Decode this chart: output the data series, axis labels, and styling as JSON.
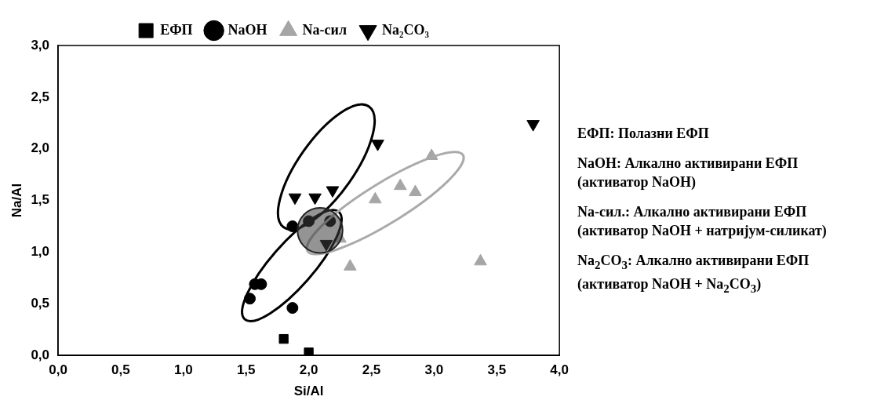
{
  "chart_data": {
    "type": "scatter",
    "xlabel": "Si/Al",
    "ylabel": "Na/Al",
    "legend": "top",
    "grid": false,
    "xlim": [
      0,
      4
    ],
    "ylim": [
      0,
      3
    ],
    "xticks": [
      {
        "value": 0,
        "label": "0,0"
      },
      {
        "value": 0.5,
        "label": "0,5"
      },
      {
        "value": 1,
        "label": "1,0"
      },
      {
        "value": 1.5,
        "label": "1,5"
      },
      {
        "value": 2,
        "label": "2,0"
      },
      {
        "value": 2.5,
        "label": "2,5"
      },
      {
        "value": 3,
        "label": "3,0"
      },
      {
        "value": 3.5,
        "label": "3,5"
      },
      {
        "value": 4,
        "label": "4,0"
      }
    ],
    "yticks": [
      {
        "value": 0,
        "label": "0,0"
      },
      {
        "value": 0.5,
        "label": "0,5"
      },
      {
        "value": 1,
        "label": "1,0"
      },
      {
        "value": 1.5,
        "label": "1,5"
      },
      {
        "value": 2,
        "label": "2,0"
      },
      {
        "value": 2.5,
        "label": "2,5"
      },
      {
        "value": 3,
        "label": "3,0"
      }
    ],
    "series": [
      {
        "name": "ЕФП",
        "color": "#000000",
        "marker": "square",
        "x": [
          1.8,
          2.0
        ],
        "values": [
          0.16,
          0.03
        ]
      },
      {
        "name": "NaOH",
        "color": "#000000",
        "marker": "circle",
        "x": [
          1.57,
          1.62,
          1.53,
          1.87,
          1.87,
          2.0,
          2.17
        ],
        "values": [
          0.69,
          0.69,
          0.55,
          0.46,
          1.25,
          1.3,
          1.3
        ]
      },
      {
        "name": "Na-сил",
        "color": "#a6a6a6",
        "marker": "triangle",
        "x": [
          2.98,
          2.73,
          2.85,
          2.53,
          2.25,
          2.33,
          3.37
        ],
        "values": [
          1.93,
          1.64,
          1.58,
          1.51,
          1.13,
          0.86,
          0.91
        ]
      },
      {
        "name": "Na₂CO₃",
        "color": "#000000",
        "marker": "triangle-down",
        "x": [
          2.55,
          1.89,
          2.05,
          2.19,
          2.14,
          3.79
        ],
        "values": [
          2.05,
          1.53,
          1.53,
          1.6,
          1.08,
          2.24
        ]
      }
    ],
    "annotations": [
      "ЕФП: Полазни ЕФП",
      "NaOH: Алкално активирани ЕФП (активатор NaOH)",
      "Na-сил.: Алкално активирани ЕФП (активатор NaOH + натријум-силикат)",
      "Na$_{2}$CO$_{3}$: Алкално активирани ЕФП (активатор NaOH + Na$_{2}$CO$_{3}$)"
    ]
  }
}
